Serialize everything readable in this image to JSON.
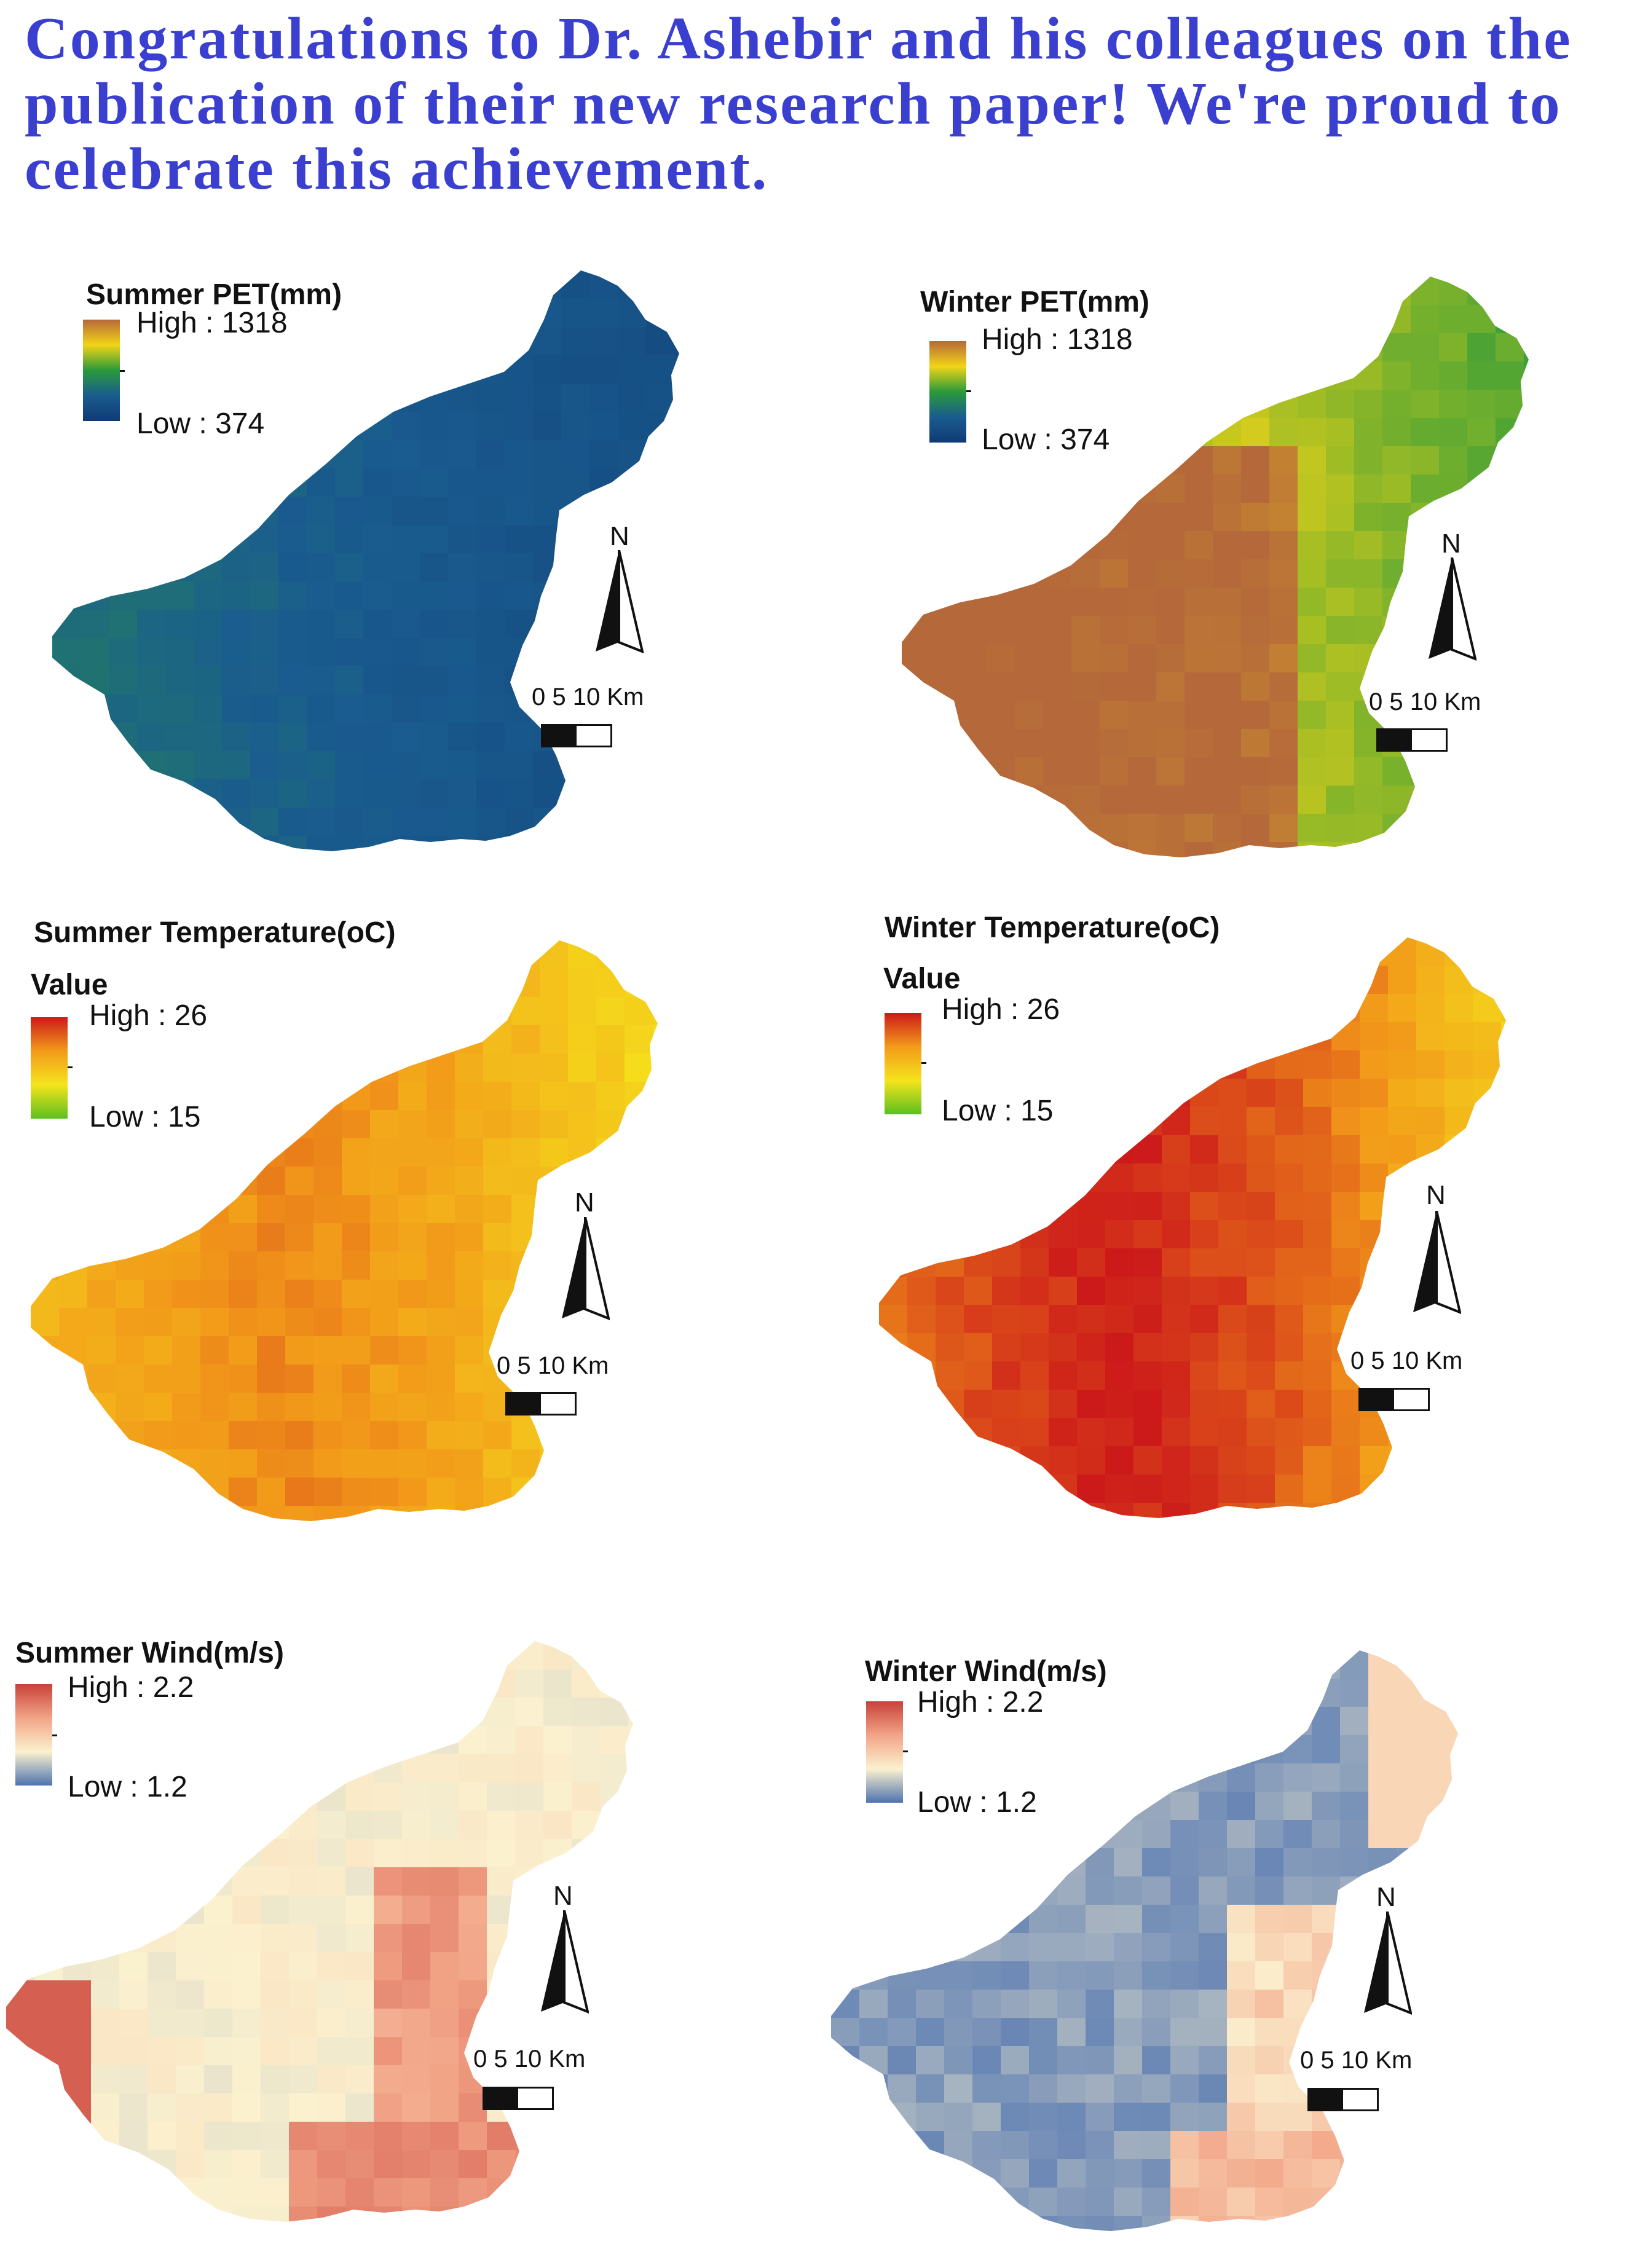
{
  "headline": "Congratulations to Dr. Ashebir and his colleagues on the publication of their new research paper! We're proud to celebrate this achievement.",
  "panels": [
    {
      "title": "Summer PET(mm)",
      "value_label": "",
      "high": "High : 1318",
      "low": "Low : 374",
      "ramp": [
        "#b5693a",
        "#f2d417",
        "#2a9a3a",
        "#1a5c8f",
        "#0f3a73"
      ],
      "fill": {
        "type": "pet-summer"
      }
    },
    {
      "title": "Winter PET(mm)",
      "value_label": "",
      "high": "High : 1318",
      "low": "Low : 374",
      "ramp": [
        "#b5693a",
        "#f2d417",
        "#2a9a3a",
        "#1a5c8f",
        "#0f3a73"
      ],
      "fill": {
        "type": "pet-winter"
      }
    },
    {
      "title": "Summer Temperature(oC)",
      "value_label": "Value",
      "high": "High : 26",
      "low": "Low : 15",
      "ramp": [
        "#cc1a1a",
        "#f29a1a",
        "#f5e41c",
        "#5cc01e"
      ],
      "fill": {
        "type": "temp-summer"
      }
    },
    {
      "title": "Winter Temperature(oC)",
      "value_label": "Value",
      "high": "High : 26",
      "low": "Low : 15",
      "ramp": [
        "#cc1a1a",
        "#f29a1a",
        "#f5e41c",
        "#5cc01e"
      ],
      "fill": {
        "type": "temp-winter"
      }
    },
    {
      "title": "Summer Wind(m/s)",
      "value_label": "",
      "high": "High : 2.2",
      "low": "Low : 1.2",
      "ramp": [
        "#c8413a",
        "#f2a487",
        "#fbf1cf",
        "#4f73b0"
      ],
      "fill": {
        "type": "wind-summer"
      }
    },
    {
      "title": "Winter Wind(m/s)",
      "value_label": "",
      "high": "High : 2.2",
      "low": "Low : 1.2",
      "ramp": [
        "#c8413a",
        "#f2a487",
        "#fbf1cf",
        "#4f73b0"
      ],
      "fill": {
        "type": "wind-winter"
      }
    }
  ],
  "north_label": "N",
  "scale_label": "0   5  10 Km",
  "icons": [
    "north-arrow-icon",
    "scale-bar-icon"
  ]
}
